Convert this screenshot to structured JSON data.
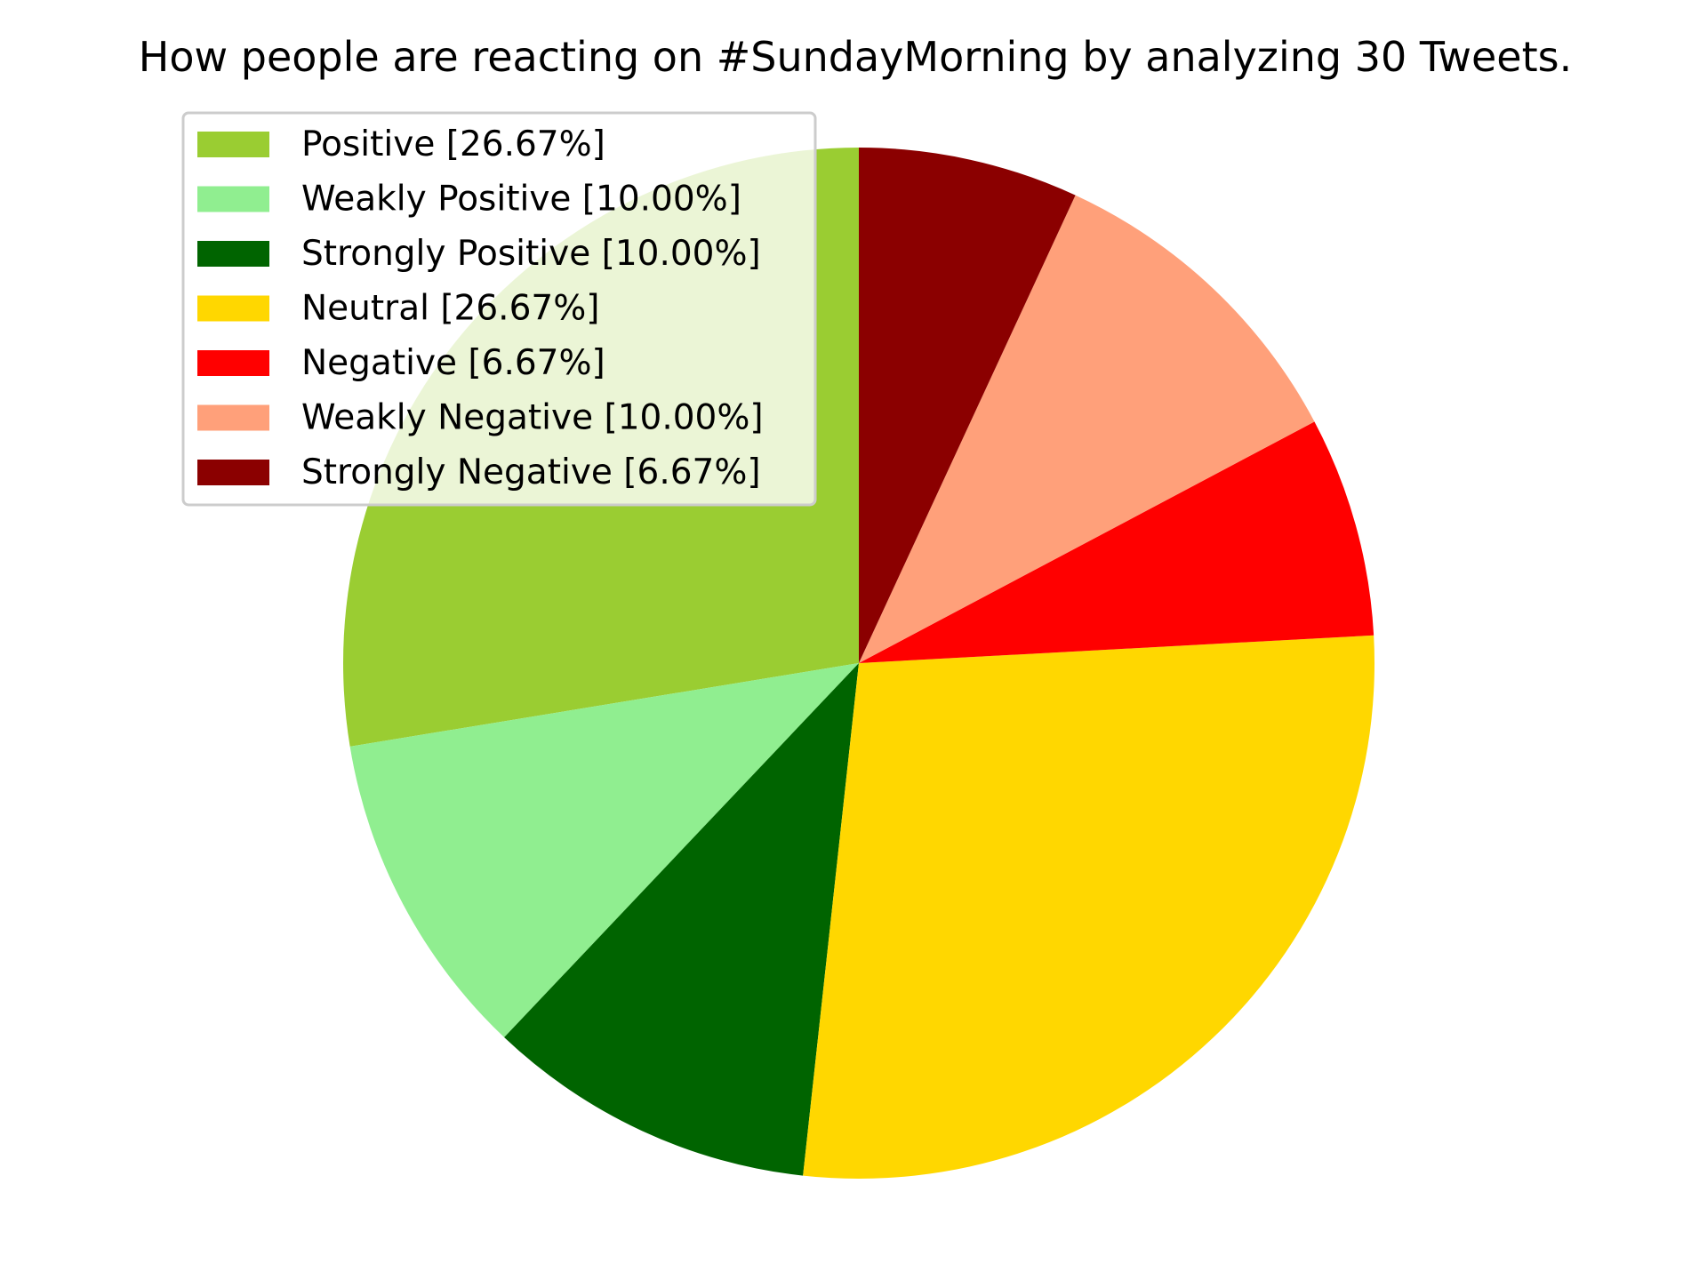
{
  "chart_data": {
    "type": "pie",
    "title": "How people are reacting on #SundayMorning by analyzing 30 Tweets.",
    "start_angle_deg": 90,
    "direction": "counterclockwise",
    "legend_position": "upper-left",
    "slices": [
      {
        "label": "Positive [26.67%]",
        "value": 26.67,
        "color": "#9acd32"
      },
      {
        "label": "Weakly Positive [10.00%]",
        "value": 10.0,
        "color": "#90ee90"
      },
      {
        "label": "Strongly Positive [10.00%]",
        "value": 10.0,
        "color": "#006400"
      },
      {
        "label": "Neutral [26.67%]",
        "value": 26.67,
        "color": "#ffd700"
      },
      {
        "label": "Negative [6.67%]",
        "value": 6.67,
        "color": "#ff0000"
      },
      {
        "label": "Weakly Negative [10.00%]",
        "value": 10.0,
        "color": "#ffa07a"
      },
      {
        "label": "Strongly Negative [6.67%]",
        "value": 6.67,
        "color": "#8b0000"
      }
    ]
  }
}
